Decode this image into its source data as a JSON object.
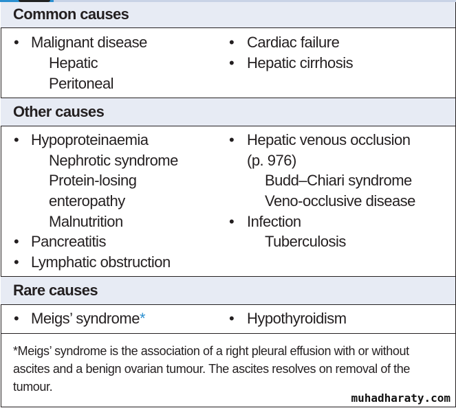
{
  "sections": [
    {
      "title": "Common causes",
      "left": [
        {
          "b": "Malignant disease",
          "subs": [
            "Hepatic",
            "Peritoneal"
          ]
        }
      ],
      "right": [
        {
          "b": "Cardiac failure",
          "subs": []
        },
        {
          "b": "Hepatic cirrhosis",
          "subs": []
        }
      ]
    },
    {
      "title": "Other causes",
      "left": [
        {
          "b": "Hypoproteinaemia",
          "subs": [
            "Nephrotic syndrome",
            "Protein-losing",
            "enteropathy",
            "Malnutrition"
          ]
        },
        {
          "b": "Pancreatitis",
          "subs": []
        },
        {
          "b": "Lymphatic obstruction",
          "subs": []
        }
      ],
      "right": [
        {
          "b": "Hepatic venous occlusion",
          "subs": []
        },
        {
          "b": "",
          "subs": []
        }
      ]
    },
    {
      "title": "Rare causes"
    }
  ],
  "other_right": {
    "b1": "Hepatic venous occlusion",
    "b1_cont": "(p. 976)",
    "b1_subs": [
      "Budd–Chiari syndrome",
      "Veno-occlusive disease"
    ],
    "b2": "Infection",
    "b2_subs": [
      "Tuberculosis"
    ]
  },
  "rare": {
    "left": "Meigs’ syndrome",
    "left_mark": "*",
    "right": "Hypothyroidism"
  },
  "footnote": "*Meigs’ syndrome is the association of a right pleural effusion with or without ascites and a benign ovarian tumour. The ascites resolves on removal of the tumour.",
  "watermark": "muhadharaty.com",
  "bullet": "•"
}
